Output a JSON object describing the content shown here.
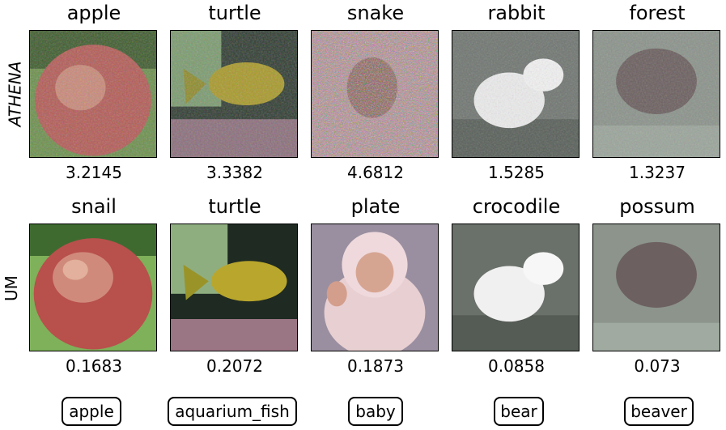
{
  "rows": [
    {
      "label": "ATHENA",
      "cells": [
        {
          "title": "apple",
          "score": "3.2145",
          "image": "red-apple-noisy"
        },
        {
          "title": "turtle",
          "score": "3.3382",
          "image": "yellow-fish-noisy"
        },
        {
          "title": "snake",
          "score": "4.6812",
          "image": "baby-heavy-noise"
        },
        {
          "title": "rabbit",
          "score": "1.5285",
          "image": "white-bear-noisy"
        },
        {
          "title": "forest",
          "score": "1.3237",
          "image": "beaver-noisy"
        }
      ]
    },
    {
      "label": "UM",
      "cells": [
        {
          "title": "snail",
          "score": "0.1683",
          "image": "red-apple"
        },
        {
          "title": "turtle",
          "score": "0.2072",
          "image": "yellow-fish"
        },
        {
          "title": "plate",
          "score": "0.1873",
          "image": "baby"
        },
        {
          "title": "crocodile",
          "score": "0.0858",
          "image": "white-bear"
        },
        {
          "title": "possum",
          "score": "0.073",
          "image": "beaver"
        }
      ]
    }
  ],
  "classes": [
    "apple",
    "aquarium_fish",
    "baby",
    "bear",
    "beaver"
  ]
}
